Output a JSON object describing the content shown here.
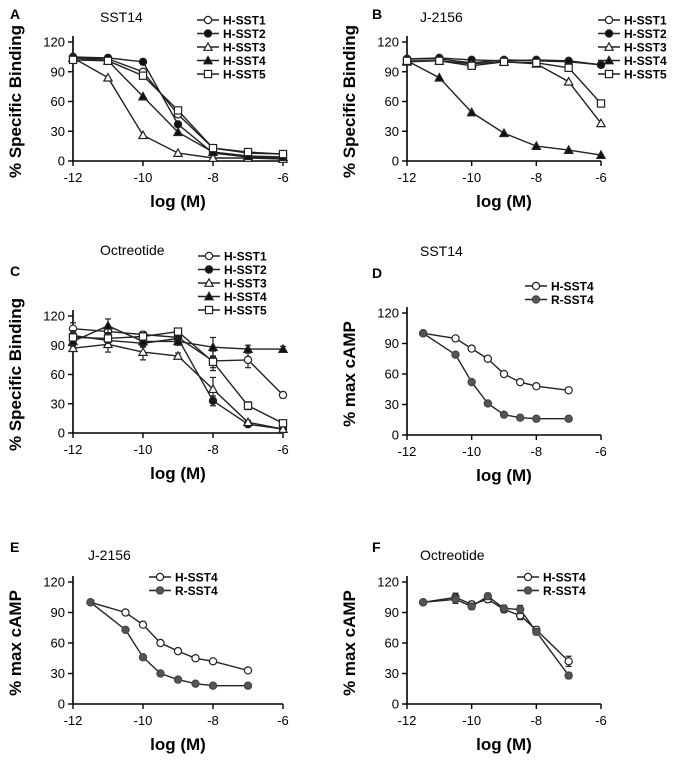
{
  "chart_data": [
    {
      "panel": "A",
      "title": "SST14",
      "type": "line",
      "xlabel": "log (M)",
      "ylabel": "% Specific Binding",
      "xlim": [
        -12,
        -6
      ],
      "ylim": [
        0,
        120
      ],
      "xticks": [
        "-12",
        "-10",
        "-8",
        "-6"
      ],
      "yticks": [
        "0",
        "30",
        "60",
        "90",
        "120"
      ],
      "legend": "top-right",
      "series": [
        {
          "name": "H-SST1",
          "marker": "circle-open",
          "x": [
            -12,
            -11,
            -10,
            -9,
            -8,
            -7,
            -6
          ],
          "y": [
            104,
            103,
            90,
            47,
            13,
            8,
            7
          ]
        },
        {
          "name": "H-SST2",
          "marker": "circle-filled",
          "x": [
            -12,
            -11,
            -10,
            -9,
            -8,
            -7,
            -6
          ],
          "y": [
            105,
            104,
            100,
            37,
            8,
            4,
            3
          ]
        },
        {
          "name": "H-SST3",
          "marker": "triangle-open",
          "x": [
            -12,
            -11,
            -10,
            -9,
            -8,
            -7,
            -6
          ],
          "y": [
            104,
            84,
            26,
            8,
            3,
            3,
            2
          ]
        },
        {
          "name": "H-SST4",
          "marker": "triangle-filled",
          "x": [
            -12,
            -11,
            -10,
            -9,
            -8,
            -7,
            -6
          ],
          "y": [
            104,
            101,
            65,
            29,
            9,
            5,
            4
          ]
        },
        {
          "name": "H-SST5",
          "marker": "square-open",
          "x": [
            -12,
            -11,
            -10,
            -9,
            -8,
            -7,
            -6
          ],
          "y": [
            102,
            101,
            86,
            51,
            13,
            9,
            7
          ]
        }
      ]
    },
    {
      "panel": "B",
      "title": "J-2156",
      "type": "line",
      "xlabel": "log (M)",
      "ylabel": "% Specific Binding",
      "xlim": [
        -12,
        -6
      ],
      "ylim": [
        0,
        120
      ],
      "xticks": [
        "-12",
        "-10",
        "-8",
        "-6"
      ],
      "yticks": [
        "0",
        "30",
        "60",
        "90",
        "120"
      ],
      "legend": "top-right",
      "series": [
        {
          "name": "H-SST1",
          "marker": "circle-open",
          "x": [
            -12,
            -11,
            -10,
            -9,
            -8,
            -7,
            -6
          ],
          "y": [
            103,
            103,
            99,
            102,
            101,
            100,
            97
          ]
        },
        {
          "name": "H-SST2",
          "marker": "circle-filled",
          "x": [
            -12,
            -11,
            -10,
            -9,
            -8,
            -7,
            -6
          ],
          "y": [
            103,
            104,
            102,
            101,
            102,
            101,
            97
          ]
        },
        {
          "name": "H-SST3",
          "marker": "triangle-open",
          "x": [
            -12,
            -11,
            -10,
            -9,
            -8,
            -7,
            -6
          ],
          "y": [
            100,
            101,
            98,
            100,
            98,
            80,
            38
          ]
        },
        {
          "name": "H-SST4",
          "marker": "triangle-filled",
          "x": [
            -12,
            -11,
            -10,
            -9,
            -8,
            -7,
            -6
          ],
          "y": [
            101,
            84,
            49,
            28,
            15,
            11,
            6
          ]
        },
        {
          "name": "H-SST5",
          "marker": "square-open",
          "x": [
            -12,
            -11,
            -10,
            -9,
            -8,
            -7,
            -6
          ],
          "y": [
            101,
            101,
            96,
            100,
            99,
            94,
            58
          ]
        }
      ]
    },
    {
      "panel": "C",
      "title": "Octreotide",
      "type": "line",
      "xlabel": "log (M)",
      "ylabel": "% Specific Binding",
      "xlim": [
        -12,
        -6
      ],
      "ylim": [
        0,
        120
      ],
      "xticks": [
        "-12",
        "-10",
        "-8",
        "-6"
      ],
      "yticks": [
        "0",
        "30",
        "60",
        "90",
        "120"
      ],
      "legend": "top-right",
      "series": [
        {
          "name": "H-SST1",
          "marker": "circle-open",
          "x": [
            -12,
            -11,
            -10,
            -9,
            -8,
            -7,
            -6
          ],
          "y": [
            107,
            104,
            101,
            98,
            74,
            75,
            39
          ],
          "err": [
            6,
            5,
            3,
            3,
            10,
            8,
            3
          ]
        },
        {
          "name": "H-SST2",
          "marker": "circle-filled",
          "x": [
            -12,
            -11,
            -10,
            -9,
            -8,
            -7,
            -6
          ],
          "y": [
            100,
            95,
            92,
            97,
            33,
            9,
            4
          ],
          "err": [
            5,
            7,
            4,
            3,
            5,
            2,
            2
          ]
        },
        {
          "name": "H-SST3",
          "marker": "triangle-open",
          "x": [
            -12,
            -11,
            -10,
            -9,
            -8,
            -7,
            -6
          ],
          "y": [
            87,
            91,
            83,
            79,
            45,
            11,
            4
          ],
          "err": [
            3,
            8,
            8,
            3,
            12,
            2,
            1
          ]
        },
        {
          "name": "H-SST4",
          "marker": "triangle-filled",
          "x": [
            -12,
            -11,
            -10,
            -9,
            -8,
            -7,
            -6
          ],
          "y": [
            94,
            110,
            94,
            94,
            88,
            86,
            86
          ],
          "err": [
            5,
            7,
            5,
            4,
            10,
            4,
            3
          ]
        },
        {
          "name": "H-SST5",
          "marker": "square-open",
          "x": [
            -12,
            -11,
            -10,
            -9,
            -8,
            -7,
            -6
          ],
          "y": [
            98,
            97,
            99,
            104,
            73,
            28,
            10
          ],
          "err": [
            4,
            5,
            4,
            3,
            6,
            4,
            2
          ]
        }
      ]
    },
    {
      "panel": "D",
      "title": "SST14",
      "type": "line",
      "xlabel": "log (M)",
      "ylabel": "% max cAMP",
      "xlim": [
        -12,
        -6
      ],
      "ylim": [
        0,
        120
      ],
      "xticks": [
        "-12",
        "-10",
        "-8",
        "-6"
      ],
      "yticks": [
        "0",
        "30",
        "60",
        "90",
        "120"
      ],
      "legend": "top-right",
      "series": [
        {
          "name": "H-SST4",
          "marker": "circle-open",
          "x": [
            -11.5,
            -10.5,
            -10,
            -9.5,
            -9,
            -8.5,
            -8,
            -7
          ],
          "y": [
            100,
            95,
            85,
            75,
            60,
            52,
            48,
            44
          ]
        },
        {
          "name": "R-SST4",
          "marker": "circle-gray",
          "x": [
            -11.5,
            -10.5,
            -10,
            -9.5,
            -9,
            -8.5,
            -8,
            -7
          ],
          "y": [
            100,
            79,
            52,
            31,
            20,
            17,
            16,
            16
          ]
        }
      ]
    },
    {
      "panel": "E",
      "title": "J-2156",
      "type": "line",
      "xlabel": "log (M)",
      "ylabel": "% max cAMP",
      "xlim": [
        -12,
        -6
      ],
      "ylim": [
        0,
        120
      ],
      "xticks": [
        "-12",
        "-10",
        "-8",
        "-6"
      ],
      "yticks": [
        "0",
        "30",
        "60",
        "90",
        "120"
      ],
      "legend": "top-right",
      "series": [
        {
          "name": "H-SST4",
          "marker": "circle-open",
          "x": [
            -11.5,
            -10.5,
            -10,
            -9.5,
            -9,
            -8.5,
            -8,
            -7
          ],
          "y": [
            100,
            90,
            78,
            60,
            52,
            45,
            42,
            33
          ]
        },
        {
          "name": "R-SST4",
          "marker": "circle-gray",
          "x": [
            -11.5,
            -10.5,
            -10,
            -9.5,
            -9,
            -8.5,
            -8,
            -7
          ],
          "y": [
            100,
            73,
            46,
            30,
            24,
            20,
            18,
            18
          ]
        }
      ]
    },
    {
      "panel": "F",
      "title": "Octreotide",
      "type": "line",
      "xlabel": "log (M)",
      "ylabel": "% max cAMP",
      "xlim": [
        -12,
        -6
      ],
      "ylim": [
        0,
        120
      ],
      "xticks": [
        "-12",
        "-10",
        "-8",
        "-6"
      ],
      "yticks": [
        "0",
        "30",
        "60",
        "90",
        "120"
      ],
      "legend": "top-right",
      "series": [
        {
          "name": "H-SST4",
          "marker": "circle-open",
          "x": [
            -11.5,
            -10.5,
            -10,
            -9.5,
            -9,
            -8.5,
            -8,
            -7
          ],
          "y": [
            100,
            105,
            98,
            103,
            93,
            87,
            73,
            42
          ],
          "err": [
            2,
            4,
            3,
            3,
            3,
            4,
            3,
            5
          ]
        },
        {
          "name": "R-SST4",
          "marker": "circle-gray",
          "x": [
            -11.5,
            -10.5,
            -10,
            -9.5,
            -9,
            -8.5,
            -8,
            -7
          ],
          "y": [
            100,
            103,
            96,
            106,
            94,
            93,
            71,
            28
          ],
          "err": [
            2,
            4,
            3,
            3,
            3,
            4,
            3,
            3
          ]
        }
      ]
    }
  ]
}
